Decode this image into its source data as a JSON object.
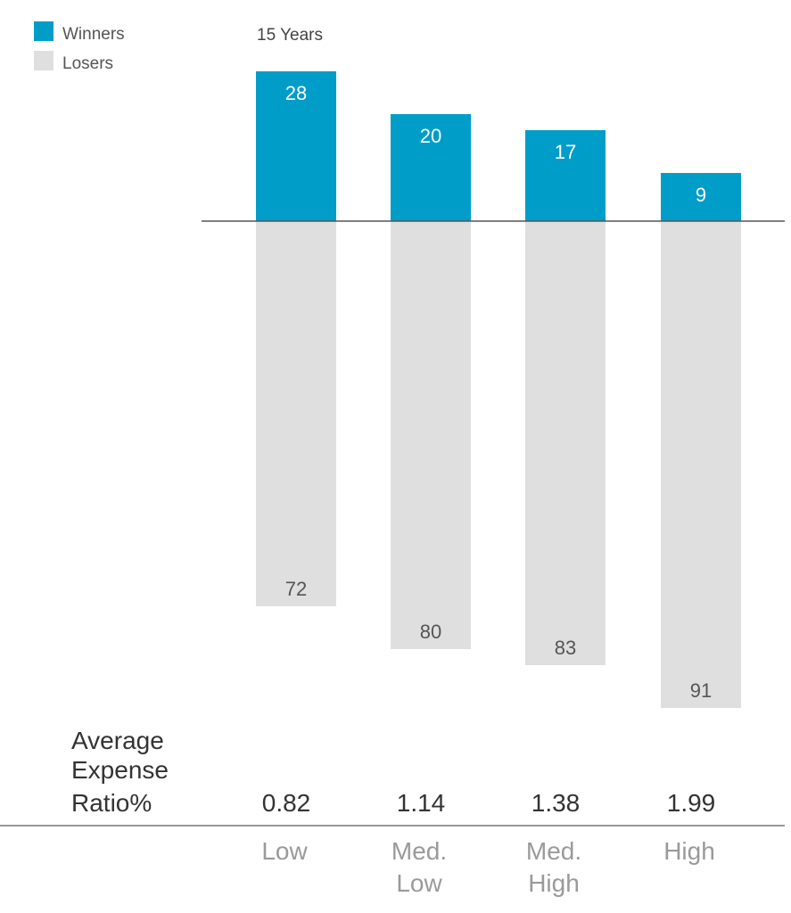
{
  "chart_data": {
    "type": "bar",
    "period_label": "15 Years",
    "categories": [
      [
        "Low"
      ],
      [
        "Med.",
        "Low"
      ],
      [
        "Med.",
        "High"
      ],
      [
        "High"
      ]
    ],
    "series": [
      {
        "name": "Winners",
        "values": [
          28,
          20,
          17,
          9
        ],
        "color": "#009dc8"
      },
      {
        "name": "Losers",
        "values": [
          72,
          80,
          83,
          91
        ],
        "color": "#dfdfe0"
      }
    ],
    "expense_ratio_title": [
      "Average",
      "Expense",
      "Ratio%"
    ],
    "expense_ratios": [
      "0.82",
      "1.14",
      "1.38",
      "1.99"
    ],
    "grid": false,
    "legend_position": "top-left"
  }
}
